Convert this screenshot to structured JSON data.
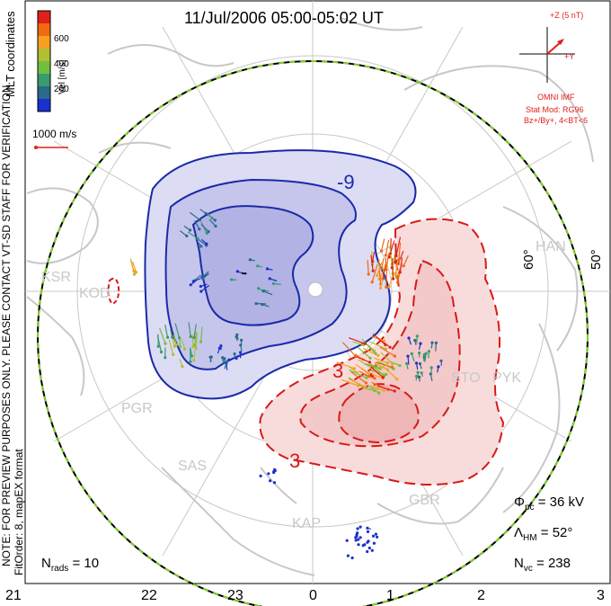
{
  "title": "11/Jul/2006 05:00-05:02 UT",
  "coordinates_label": "MLT coordinates",
  "colorbar": {
    "label": "Vel [m/s]",
    "ticks": [
      "600",
      "400",
      "200"
    ],
    "colors": [
      "#e0201a",
      "#f06a10",
      "#f7a020",
      "#b0c030",
      "#70c040",
      "#3a9a70",
      "#2a6a8a",
      "#1a30d0"
    ]
  },
  "scale_vector_label": "1000 m/s",
  "imf": {
    "axis_z": "+Z (5 nT)",
    "axis_y": "+Y",
    "source": "OMNI IMF",
    "stat_mod": "Stat Mod: RG96",
    "conditions": "Bz+/By+, 4<BT<6"
  },
  "notes": {
    "preview": "NOTE: FOR PREVIEW PURPOSES ONLY. PLEASE CONTACT VT-SD STAFF FOR VERIFICATION.",
    "fit": "FitOrder: 8,  mapEX format"
  },
  "latitude_labels": [
    "60°",
    "50°"
  ],
  "contour_labels": [
    "-9",
    "-",
    "3",
    "3"
  ],
  "stations": [
    "KSR",
    "KOD",
    "PGR",
    "SAS",
    "KAP",
    "GBR",
    "STO",
    "PYK",
    "HAN"
  ],
  "stats": {
    "phi_pc_symbol": "Φ",
    "phi_pc_sub": "pc",
    "phi_pc_value": "= 36 kV",
    "lambda_hm_symbol": "Λ",
    "lambda_hm_sub": "HM",
    "lambda_hm_value": "= 52°",
    "n_vc_symbol": "N",
    "n_vc_sub": "vc",
    "n_vc_value": "= 238",
    "n_rads_symbol": "N",
    "n_rads_sub": "rads",
    "n_rads_value": "= 10"
  },
  "mlt_axis": [
    "21",
    "22",
    "23",
    "0",
    "1",
    "2",
    "3"
  ],
  "style_colors": {
    "negative_cell": "#1a2aa8",
    "positive_cell": "#d81a1a",
    "boundary_green": "#7ed321",
    "grid_gray": "#c8c8c8"
  }
}
